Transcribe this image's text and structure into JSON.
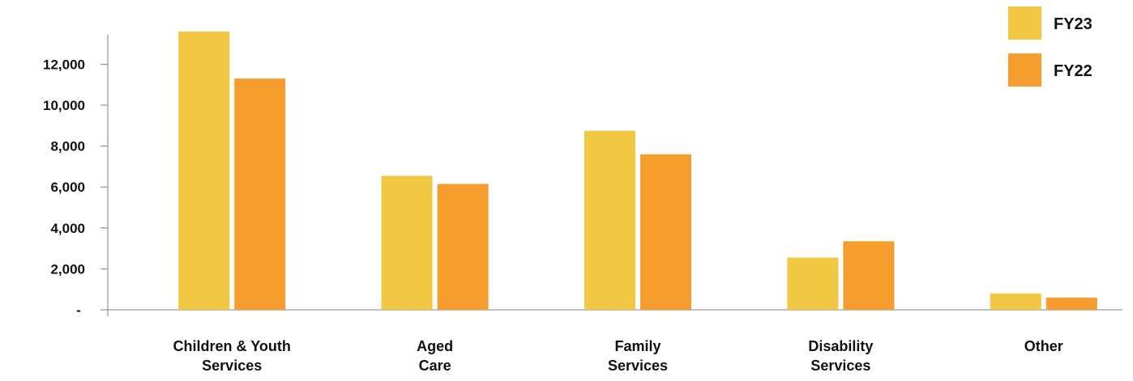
{
  "chart_data": {
    "type": "bar",
    "categories": [
      [
        "Children & Youth",
        "Services"
      ],
      [
        "Aged",
        "Care"
      ],
      [
        "Family",
        "Services"
      ],
      [
        "Disability",
        "Services"
      ],
      [
        "Other"
      ]
    ],
    "series": [
      {
        "name": "FY23",
        "color": "#F2C744",
        "values": [
          13600,
          6550,
          8750,
          2550,
          800
        ]
      },
      {
        "name": "FY22",
        "color": "#F59E2E",
        "values": [
          11300,
          6150,
          7600,
          3350,
          600
        ]
      }
    ],
    "yticks": [
      0,
      2000,
      4000,
      6000,
      8000,
      10000,
      12000
    ],
    "ytick_labels": [
      "-",
      "2,000",
      "4,000",
      "6,000",
      "8,000",
      "10,000",
      "12,000"
    ],
    "ylim": [
      0,
      14000
    ],
    "grid": false,
    "legend_position": "top-right"
  }
}
